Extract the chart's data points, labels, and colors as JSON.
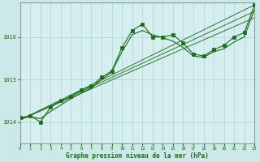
{
  "bg_color": "#cce8e8",
  "plot_bg_color": "#d6eef0",
  "grid_color": "#b0d8d8",
  "line_color": "#1a6b1a",
  "marker_color": "#1a6b1a",
  "xlabel": "Graphe pression niveau de la mer (hPa)",
  "xlabel_color": "#1a6b1a",
  "ylabel_color": "#1a6b1a",
  "xlim": [
    0,
    23
  ],
  "ylim": [
    1013.5,
    1016.8
  ],
  "yticks": [
    1014,
    1015,
    1016
  ],
  "xticks": [
    0,
    1,
    2,
    3,
    4,
    5,
    6,
    7,
    8,
    9,
    10,
    11,
    12,
    13,
    14,
    15,
    16,
    17,
    18,
    19,
    20,
    21,
    22,
    23
  ],
  "series_main_x": [
    0,
    1,
    2,
    3,
    4,
    5,
    6,
    7,
    8,
    9,
    10,
    11,
    12,
    13,
    14,
    15,
    16,
    17,
    18,
    19,
    20,
    21,
    22,
    23
  ],
  "series_main_y": [
    1014.1,
    1014.15,
    1014.0,
    1014.35,
    1014.5,
    1014.6,
    1014.75,
    1014.85,
    1015.05,
    1015.2,
    1015.75,
    1016.15,
    1016.3,
    1016.0,
    1016.0,
    1016.05,
    1015.85,
    1015.6,
    1015.55,
    1015.7,
    1015.8,
    1016.0,
    1016.1,
    1016.75
  ],
  "series_smooth_x": [
    0,
    1,
    2,
    3,
    4,
    5,
    6,
    7,
    8,
    9,
    10,
    11,
    12,
    13,
    14,
    15,
    16,
    17,
    18,
    19,
    20,
    21,
    22,
    23
  ],
  "series_smooth_y": [
    1014.1,
    1014.12,
    1014.08,
    1014.25,
    1014.4,
    1014.55,
    1014.68,
    1014.8,
    1015.0,
    1015.18,
    1015.65,
    1016.05,
    1016.15,
    1016.05,
    1015.98,
    1015.9,
    1015.75,
    1015.55,
    1015.52,
    1015.65,
    1015.72,
    1015.88,
    1016.0,
    1016.65
  ],
  "trend_lines": [
    {
      "x": [
        0,
        23
      ],
      "y": [
        1014.05,
        1016.75
      ]
    },
    {
      "x": [
        0,
        23
      ],
      "y": [
        1014.05,
        1016.45
      ]
    },
    {
      "x": [
        0,
        23
      ],
      "y": [
        1014.05,
        1016.6
      ]
    }
  ]
}
